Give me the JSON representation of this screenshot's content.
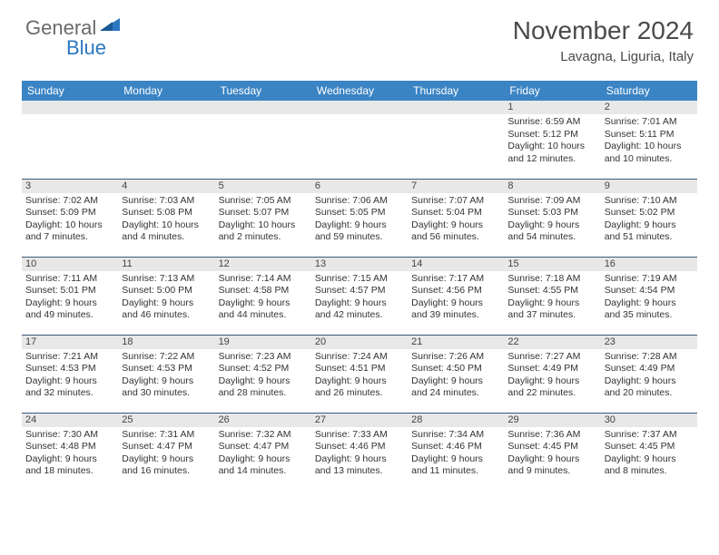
{
  "brand": {
    "part1": "General",
    "part2": "Blue"
  },
  "title": "November 2024",
  "location": "Lavagna, Liguria, Italy",
  "colors": {
    "header_bg": "#3b84c4",
    "header_text": "#ffffff",
    "daynum_bg": "#e8e8e8",
    "row_border": "#3b5a7a",
    "text": "#333333",
    "brand_gray": "#6a6a6a",
    "brand_blue": "#2b77c0"
  },
  "day_headers": [
    "Sunday",
    "Monday",
    "Tuesday",
    "Wednesday",
    "Thursday",
    "Friday",
    "Saturday"
  ],
  "weeks": [
    [
      null,
      null,
      null,
      null,
      null,
      {
        "n": "1",
        "sr": "Sunrise: 6:59 AM",
        "ss": "Sunset: 5:12 PM",
        "d1": "Daylight: 10 hours",
        "d2": "and 12 minutes."
      },
      {
        "n": "2",
        "sr": "Sunrise: 7:01 AM",
        "ss": "Sunset: 5:11 PM",
        "d1": "Daylight: 10 hours",
        "d2": "and 10 minutes."
      }
    ],
    [
      {
        "n": "3",
        "sr": "Sunrise: 7:02 AM",
        "ss": "Sunset: 5:09 PM",
        "d1": "Daylight: 10 hours",
        "d2": "and 7 minutes."
      },
      {
        "n": "4",
        "sr": "Sunrise: 7:03 AM",
        "ss": "Sunset: 5:08 PM",
        "d1": "Daylight: 10 hours",
        "d2": "and 4 minutes."
      },
      {
        "n": "5",
        "sr": "Sunrise: 7:05 AM",
        "ss": "Sunset: 5:07 PM",
        "d1": "Daylight: 10 hours",
        "d2": "and 2 minutes."
      },
      {
        "n": "6",
        "sr": "Sunrise: 7:06 AM",
        "ss": "Sunset: 5:05 PM",
        "d1": "Daylight: 9 hours",
        "d2": "and 59 minutes."
      },
      {
        "n": "7",
        "sr": "Sunrise: 7:07 AM",
        "ss": "Sunset: 5:04 PM",
        "d1": "Daylight: 9 hours",
        "d2": "and 56 minutes."
      },
      {
        "n": "8",
        "sr": "Sunrise: 7:09 AM",
        "ss": "Sunset: 5:03 PM",
        "d1": "Daylight: 9 hours",
        "d2": "and 54 minutes."
      },
      {
        "n": "9",
        "sr": "Sunrise: 7:10 AM",
        "ss": "Sunset: 5:02 PM",
        "d1": "Daylight: 9 hours",
        "d2": "and 51 minutes."
      }
    ],
    [
      {
        "n": "10",
        "sr": "Sunrise: 7:11 AM",
        "ss": "Sunset: 5:01 PM",
        "d1": "Daylight: 9 hours",
        "d2": "and 49 minutes."
      },
      {
        "n": "11",
        "sr": "Sunrise: 7:13 AM",
        "ss": "Sunset: 5:00 PM",
        "d1": "Daylight: 9 hours",
        "d2": "and 46 minutes."
      },
      {
        "n": "12",
        "sr": "Sunrise: 7:14 AM",
        "ss": "Sunset: 4:58 PM",
        "d1": "Daylight: 9 hours",
        "d2": "and 44 minutes."
      },
      {
        "n": "13",
        "sr": "Sunrise: 7:15 AM",
        "ss": "Sunset: 4:57 PM",
        "d1": "Daylight: 9 hours",
        "d2": "and 42 minutes."
      },
      {
        "n": "14",
        "sr": "Sunrise: 7:17 AM",
        "ss": "Sunset: 4:56 PM",
        "d1": "Daylight: 9 hours",
        "d2": "and 39 minutes."
      },
      {
        "n": "15",
        "sr": "Sunrise: 7:18 AM",
        "ss": "Sunset: 4:55 PM",
        "d1": "Daylight: 9 hours",
        "d2": "and 37 minutes."
      },
      {
        "n": "16",
        "sr": "Sunrise: 7:19 AM",
        "ss": "Sunset: 4:54 PM",
        "d1": "Daylight: 9 hours",
        "d2": "and 35 minutes."
      }
    ],
    [
      {
        "n": "17",
        "sr": "Sunrise: 7:21 AM",
        "ss": "Sunset: 4:53 PM",
        "d1": "Daylight: 9 hours",
        "d2": "and 32 minutes."
      },
      {
        "n": "18",
        "sr": "Sunrise: 7:22 AM",
        "ss": "Sunset: 4:53 PM",
        "d1": "Daylight: 9 hours",
        "d2": "and 30 minutes."
      },
      {
        "n": "19",
        "sr": "Sunrise: 7:23 AM",
        "ss": "Sunset: 4:52 PM",
        "d1": "Daylight: 9 hours",
        "d2": "and 28 minutes."
      },
      {
        "n": "20",
        "sr": "Sunrise: 7:24 AM",
        "ss": "Sunset: 4:51 PM",
        "d1": "Daylight: 9 hours",
        "d2": "and 26 minutes."
      },
      {
        "n": "21",
        "sr": "Sunrise: 7:26 AM",
        "ss": "Sunset: 4:50 PM",
        "d1": "Daylight: 9 hours",
        "d2": "and 24 minutes."
      },
      {
        "n": "22",
        "sr": "Sunrise: 7:27 AM",
        "ss": "Sunset: 4:49 PM",
        "d1": "Daylight: 9 hours",
        "d2": "and 22 minutes."
      },
      {
        "n": "23",
        "sr": "Sunrise: 7:28 AM",
        "ss": "Sunset: 4:49 PM",
        "d1": "Daylight: 9 hours",
        "d2": "and 20 minutes."
      }
    ],
    [
      {
        "n": "24",
        "sr": "Sunrise: 7:30 AM",
        "ss": "Sunset: 4:48 PM",
        "d1": "Daylight: 9 hours",
        "d2": "and 18 minutes."
      },
      {
        "n": "25",
        "sr": "Sunrise: 7:31 AM",
        "ss": "Sunset: 4:47 PM",
        "d1": "Daylight: 9 hours",
        "d2": "and 16 minutes."
      },
      {
        "n": "26",
        "sr": "Sunrise: 7:32 AM",
        "ss": "Sunset: 4:47 PM",
        "d1": "Daylight: 9 hours",
        "d2": "and 14 minutes."
      },
      {
        "n": "27",
        "sr": "Sunrise: 7:33 AM",
        "ss": "Sunset: 4:46 PM",
        "d1": "Daylight: 9 hours",
        "d2": "and 13 minutes."
      },
      {
        "n": "28",
        "sr": "Sunrise: 7:34 AM",
        "ss": "Sunset: 4:46 PM",
        "d1": "Daylight: 9 hours",
        "d2": "and 11 minutes."
      },
      {
        "n": "29",
        "sr": "Sunrise: 7:36 AM",
        "ss": "Sunset: 4:45 PM",
        "d1": "Daylight: 9 hours",
        "d2": "and 9 minutes."
      },
      {
        "n": "30",
        "sr": "Sunrise: 7:37 AM",
        "ss": "Sunset: 4:45 PM",
        "d1": "Daylight: 9 hours",
        "d2": "and 8 minutes."
      }
    ]
  ]
}
